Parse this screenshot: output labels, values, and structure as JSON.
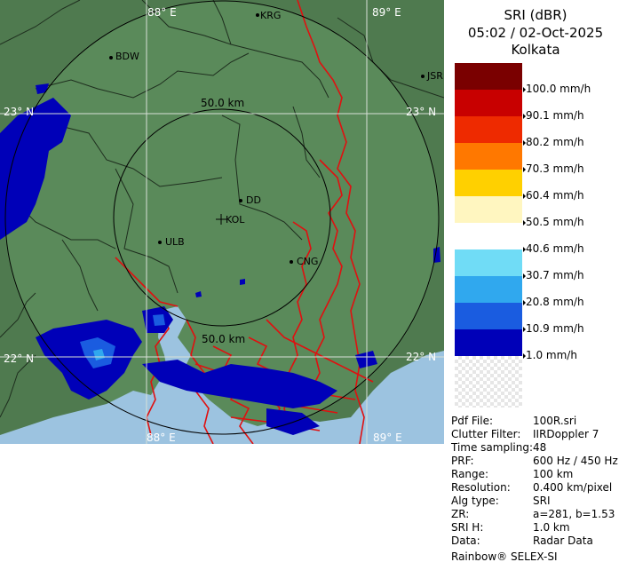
{
  "map": {
    "grid_labels": {
      "lon_88_top": "88° E",
      "lon_89_top": "89° E",
      "lon_88_bottom": "88° E",
      "lon_89_bottom": "89° E",
      "lat_23_left": "23° N",
      "lat_23_right": "23° N",
      "lat_22_left": "22° N",
      "lat_22_right": "22° N"
    },
    "ring_labels": {
      "inner_top": "50.0 km",
      "inner_bottom": "50.0 km"
    },
    "places": {
      "krg": "KRG",
      "bdw": "BDW",
      "jsr": "JSR",
      "dd": "DD",
      "kol": "KOL",
      "ulb": "ULB",
      "cng": "CNG"
    }
  },
  "panel": {
    "title_line1": "SRI (dBR)",
    "title_line2": "05:02 / 02-Oct-2025",
    "title_line3": "Kolkata",
    "legend": [
      {
        "color": "#7a0000",
        "label": "100.0 mm/h"
      },
      {
        "color": "#c80000",
        "label": "90.1 mm/h"
      },
      {
        "color": "#ee2a00",
        "label": "80.2 mm/h"
      },
      {
        "color": "#ff7800",
        "label": "70.3 mm/h"
      },
      {
        "color": "#ffd000",
        "label": "60.4 mm/h"
      },
      {
        "color": "#fff6c0",
        "label": "50.5 mm/h"
      },
      {
        "color": "#ffffff",
        "label": "40.6 mm/h"
      },
      {
        "color": "#70dcf6",
        "label": "30.7 mm/h"
      },
      {
        "color": "#30a8ee",
        "label": "20.8 mm/h"
      },
      {
        "color": "#1a5ce0",
        "label": "10.9 mm/h"
      },
      {
        "color": "#0000b8",
        "label": "1.0 mm/h"
      }
    ],
    "metadata": [
      {
        "key": "Pdf File:",
        "value": "100R.sri"
      },
      {
        "key": "Clutter Filter:",
        "value": "IIRDoppler 7"
      },
      {
        "key": "Time sampling:",
        "value": "48"
      },
      {
        "key": "PRF:",
        "value": "600 Hz / 450 Hz"
      },
      {
        "key": "Range:",
        "value": "100 km"
      },
      {
        "key": "Resolution:",
        "value": "0.400 km/pixel"
      },
      {
        "key": "Alg type:",
        "value": "SRI"
      },
      {
        "key": "ZR:",
        "value": "a=281, b=1.53"
      },
      {
        "key": "SRI H:",
        "value": "1.0 km"
      },
      {
        "key": "Data:",
        "value": "Radar Data"
      }
    ],
    "footer": "Rainbow® SELEX-SI"
  }
}
